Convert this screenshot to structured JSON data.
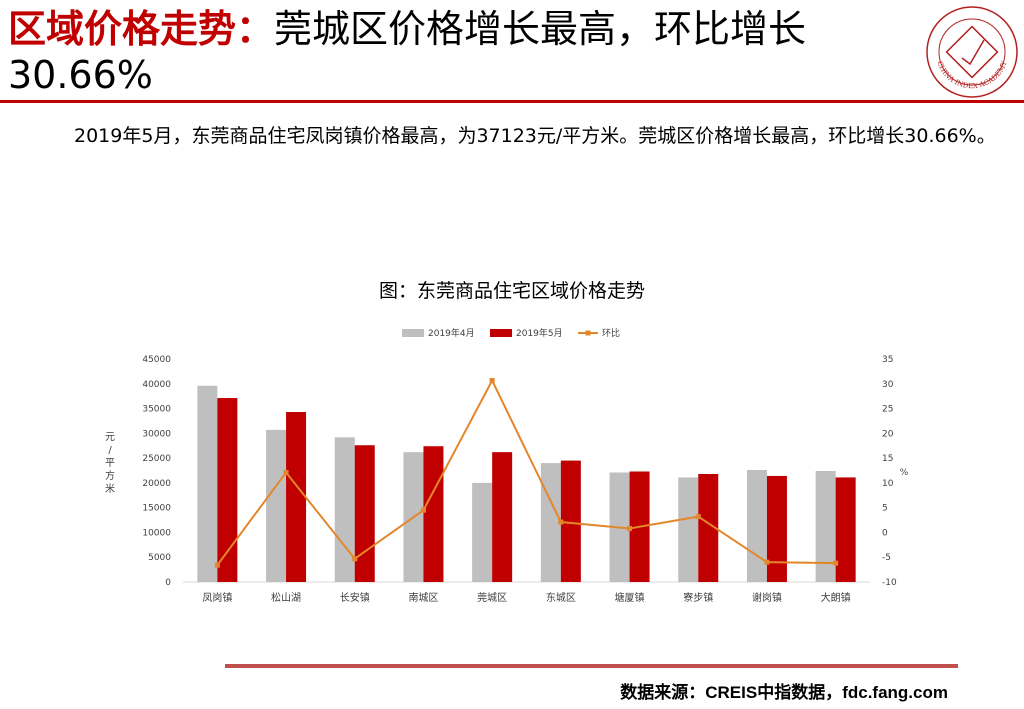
{
  "header": {
    "title_accent": "区域价格走势：",
    "title_rest": "莞城区价格增长最高，环比增长30.66%",
    "logo_text": "CHINA INDEX ACADEMY"
  },
  "body": {
    "paragraph": "2019年5月，东莞商品住宅凤岗镇价格最高，为37123元/平方米。莞城区价格增长最高，环比增长30.66%。"
  },
  "footer": {
    "source": "数据来源：CREIS中指数据，fdc.fang.com"
  },
  "colors": {
    "accent": "#c00000",
    "bar_april": "#bfbfbf",
    "bar_may": "#c00000",
    "line_mom": "#e3872a"
  },
  "chart_data": {
    "type": "bar",
    "title": "图：东莞商品住宅区域价格走势",
    "categories": [
      "凤岗镇",
      "松山湖",
      "长安镇",
      "南城区",
      "莞城区",
      "东城区",
      "塘厦镇",
      "寮步镇",
      "谢岗镇",
      "大朗镇"
    ],
    "series": [
      {
        "name": "2019年4月",
        "kind": "bar",
        "axis": "left",
        "values": [
          39600,
          30700,
          29200,
          26200,
          20000,
          24000,
          22100,
          21100,
          22600,
          22400
        ]
      },
      {
        "name": "2019年5月",
        "kind": "bar",
        "axis": "left",
        "values": [
          37123,
          34300,
          27600,
          27400,
          26200,
          24500,
          22300,
          21800,
          21400,
          21100
        ]
      },
      {
        "name": "环比",
        "kind": "line",
        "axis": "right",
        "values": [
          -6.6,
          12.1,
          -5.3,
          4.5,
          30.66,
          2.1,
          0.8,
          3.2,
          -6.0,
          -6.2
        ]
      }
    ],
    "ylabel": "元/平方米",
    "y2label": "%",
    "ylim": [
      0,
      45000
    ],
    "yticks": [
      0,
      5000,
      10000,
      15000,
      20000,
      25000,
      30000,
      35000,
      40000,
      45000
    ],
    "y2lim": [
      -10,
      35
    ],
    "y2ticks": [
      -10,
      -5,
      0,
      5,
      10,
      15,
      20,
      25,
      30,
      35
    ],
    "grid": false,
    "legend": "top"
  }
}
